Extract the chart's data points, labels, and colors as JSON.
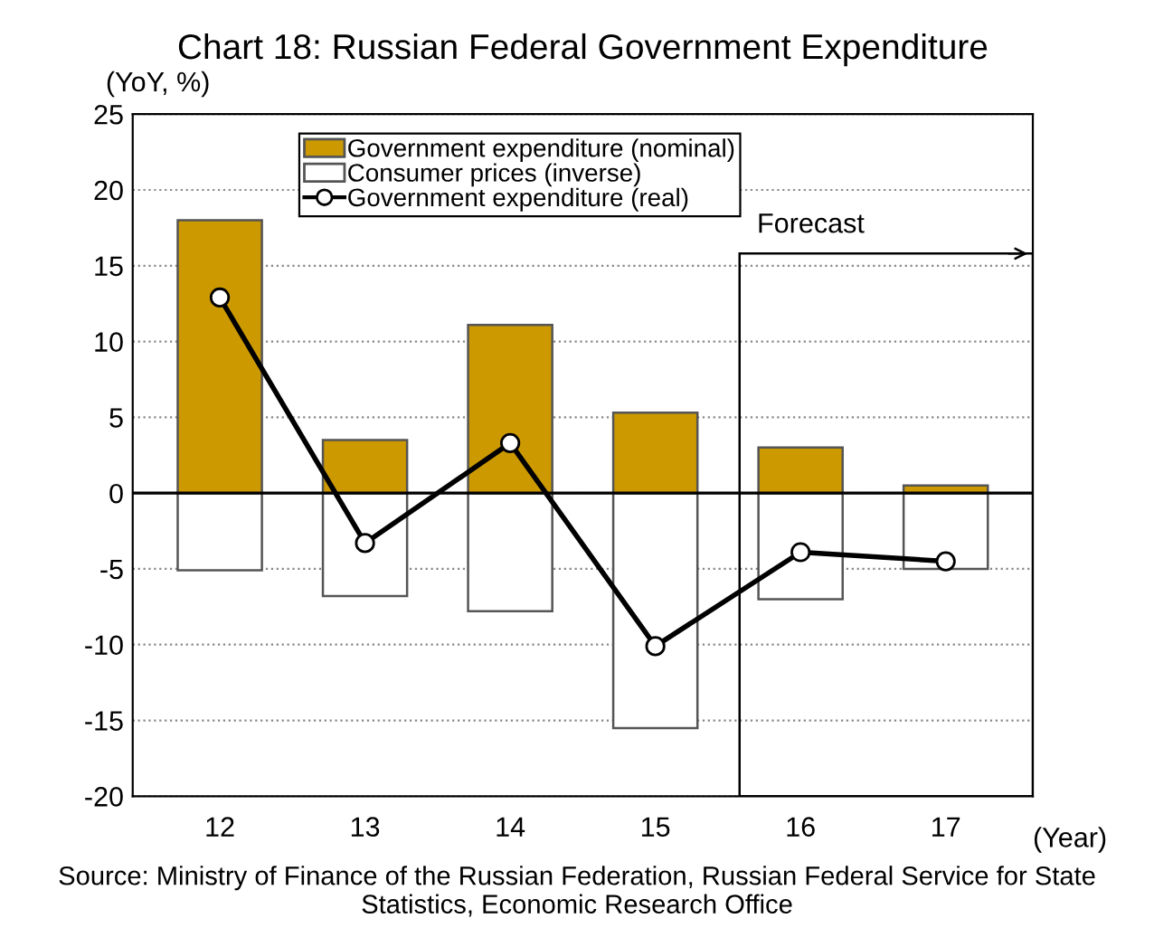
{
  "chart_data": {
    "type": "bar",
    "title": "Chart 18: Russian Federal Government Expenditure",
    "ylabel": "(YoY, %)",
    "xlabel": "(Year)",
    "categories": [
      "12",
      "13",
      "14",
      "15",
      "16",
      "17"
    ],
    "stacked": true,
    "series": [
      {
        "name": "Government expenditure (nominal)",
        "color": "#cc9900",
        "values": [
          18.0,
          3.5,
          11.1,
          5.3,
          3.0,
          0.5
        ]
      },
      {
        "name": "Consumer prices (inverse)",
        "color": "#ffffff",
        "values": [
          -5.1,
          -6.8,
          -7.8,
          -15.5,
          -7.0,
          -5.0
        ]
      },
      {
        "name": "Government expenditure (real)",
        "type": "line",
        "color": "#000000",
        "marker": "circle",
        "values": [
          12.9,
          -3.3,
          3.3,
          -10.1,
          -3.9,
          -4.5
        ]
      }
    ],
    "ylim": [
      -20,
      25
    ],
    "yticks": [
      -20,
      -15,
      -10,
      -5,
      0,
      5,
      10,
      15,
      20,
      25
    ],
    "grid": "y",
    "legend": "top",
    "annotations": [
      "Forecast",
      "Source: Ministry of Finance of the Russian Federation, Russian Federal Service for State Statistics, Economic Research Office"
    ]
  }
}
